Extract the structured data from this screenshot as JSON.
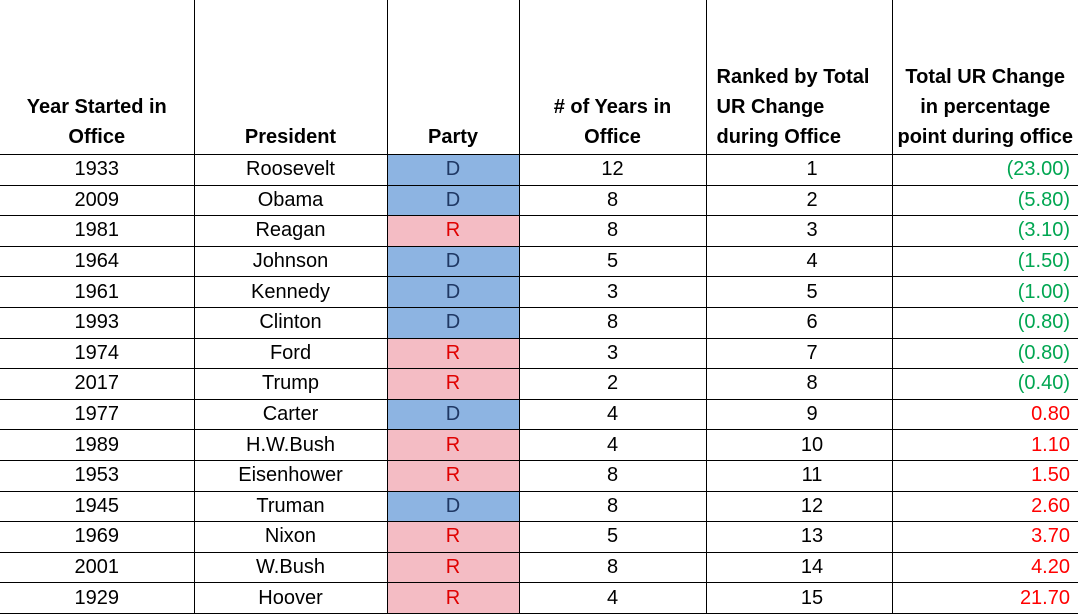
{
  "headers": {
    "year": "Year Started in Office",
    "president": "President",
    "party": "Party",
    "years": "# of Years in Office",
    "rank": "Ranked by Total UR Change during Office",
    "change": "Total UR Change in percentage point during office"
  },
  "colors": {
    "democrat_fill": "#8db4e2",
    "republican_fill": "#f4bcc4",
    "decrease_text": "#00a651",
    "increase_text": "#ff0000"
  },
  "rows": [
    {
      "year": "1933",
      "president": "Roosevelt",
      "party": "D",
      "years": "12",
      "rank": "1",
      "change": "(23.00)"
    },
    {
      "year": "2009",
      "president": "Obama",
      "party": "D",
      "years": "8",
      "rank": "2",
      "change": "(5.80)"
    },
    {
      "year": "1981",
      "president": "Reagan",
      "party": "R",
      "years": "8",
      "rank": "3",
      "change": "(3.10)"
    },
    {
      "year": "1964",
      "president": "Johnson",
      "party": "D",
      "years": "5",
      "rank": "4",
      "change": "(1.50)"
    },
    {
      "year": "1961",
      "president": "Kennedy",
      "party": "D",
      "years": "3",
      "rank": "5",
      "change": "(1.00)"
    },
    {
      "year": "1993",
      "president": "Clinton",
      "party": "D",
      "years": "8",
      "rank": "6",
      "change": "(0.80)"
    },
    {
      "year": "1974",
      "president": "Ford",
      "party": "R",
      "years": "3",
      "rank": "7",
      "change": "(0.80)"
    },
    {
      "year": "2017",
      "president": "Trump",
      "party": "R",
      "years": "2",
      "rank": "8",
      "change": "(0.40)"
    },
    {
      "year": "1977",
      "president": "Carter",
      "party": "D",
      "years": "4",
      "rank": "9",
      "change": "0.80"
    },
    {
      "year": "1989",
      "president": "H.W.Bush",
      "party": "R",
      "years": "4",
      "rank": "10",
      "change": "1.10"
    },
    {
      "year": "1953",
      "president": "Eisenhower",
      "party": "R",
      "years": "8",
      "rank": "11",
      "change": "1.50"
    },
    {
      "year": "1945",
      "president": "Truman",
      "party": "D",
      "years": "8",
      "rank": "12",
      "change": "2.60"
    },
    {
      "year": "1969",
      "president": "Nixon",
      "party": "R",
      "years": "5",
      "rank": "13",
      "change": "3.70"
    },
    {
      "year": "2001",
      "president": "W.Bush",
      "party": "R",
      "years": "8",
      "rank": "14",
      "change": "4.20"
    },
    {
      "year": "1929",
      "president": "Hoover",
      "party": "R",
      "years": "4",
      "rank": "15",
      "change": "21.70"
    }
  ]
}
